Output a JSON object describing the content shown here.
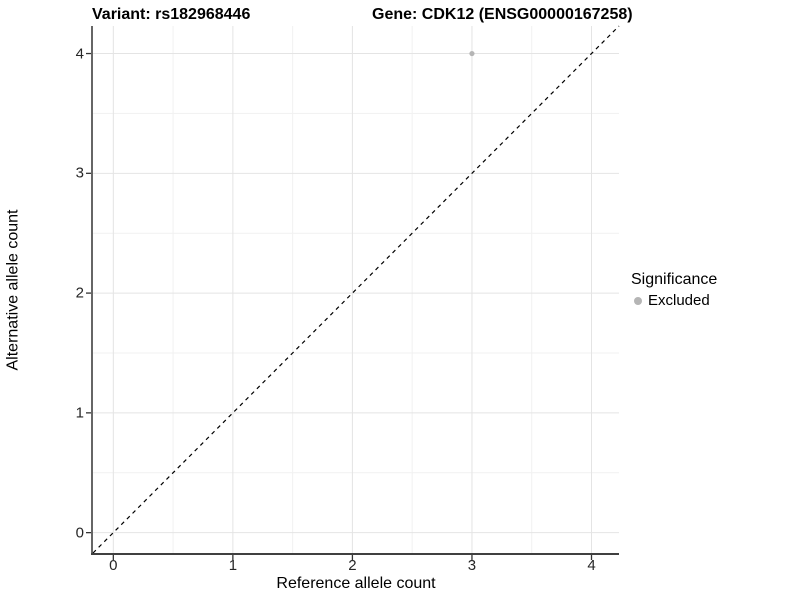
{
  "chart_data": {
    "type": "scatter",
    "title_left": "Variant: rs182968446",
    "title_right": "Gene: CDK12 (ENSG00000167258)",
    "xlabel": "Reference allele count",
    "ylabel": "Alternative allele count",
    "x_ticks": [
      0,
      1,
      2,
      3,
      4
    ],
    "y_ticks": [
      0,
      1,
      2,
      3,
      4
    ],
    "xlim": [
      -0.17,
      4.23
    ],
    "ylim": [
      -0.17,
      4.23
    ],
    "minor_step": 0.5,
    "grid": "major+minor",
    "points": [
      {
        "x": 3,
        "y": 4,
        "series": "Excluded"
      }
    ],
    "reference_line": {
      "type": "identity",
      "style": "dashed",
      "color": "#000000"
    },
    "legend": {
      "title": "Significance",
      "position": "right",
      "entries": [
        {
          "label": "Excluded",
          "color": "#b5b5b5"
        }
      ]
    },
    "colors": {
      "point": "#b5b5b5",
      "grid_major": "#e4e4e4",
      "grid_minor": "#f1f1f1",
      "axis_line": "#404040",
      "tick": "#333333",
      "text": "#000000"
    }
  }
}
